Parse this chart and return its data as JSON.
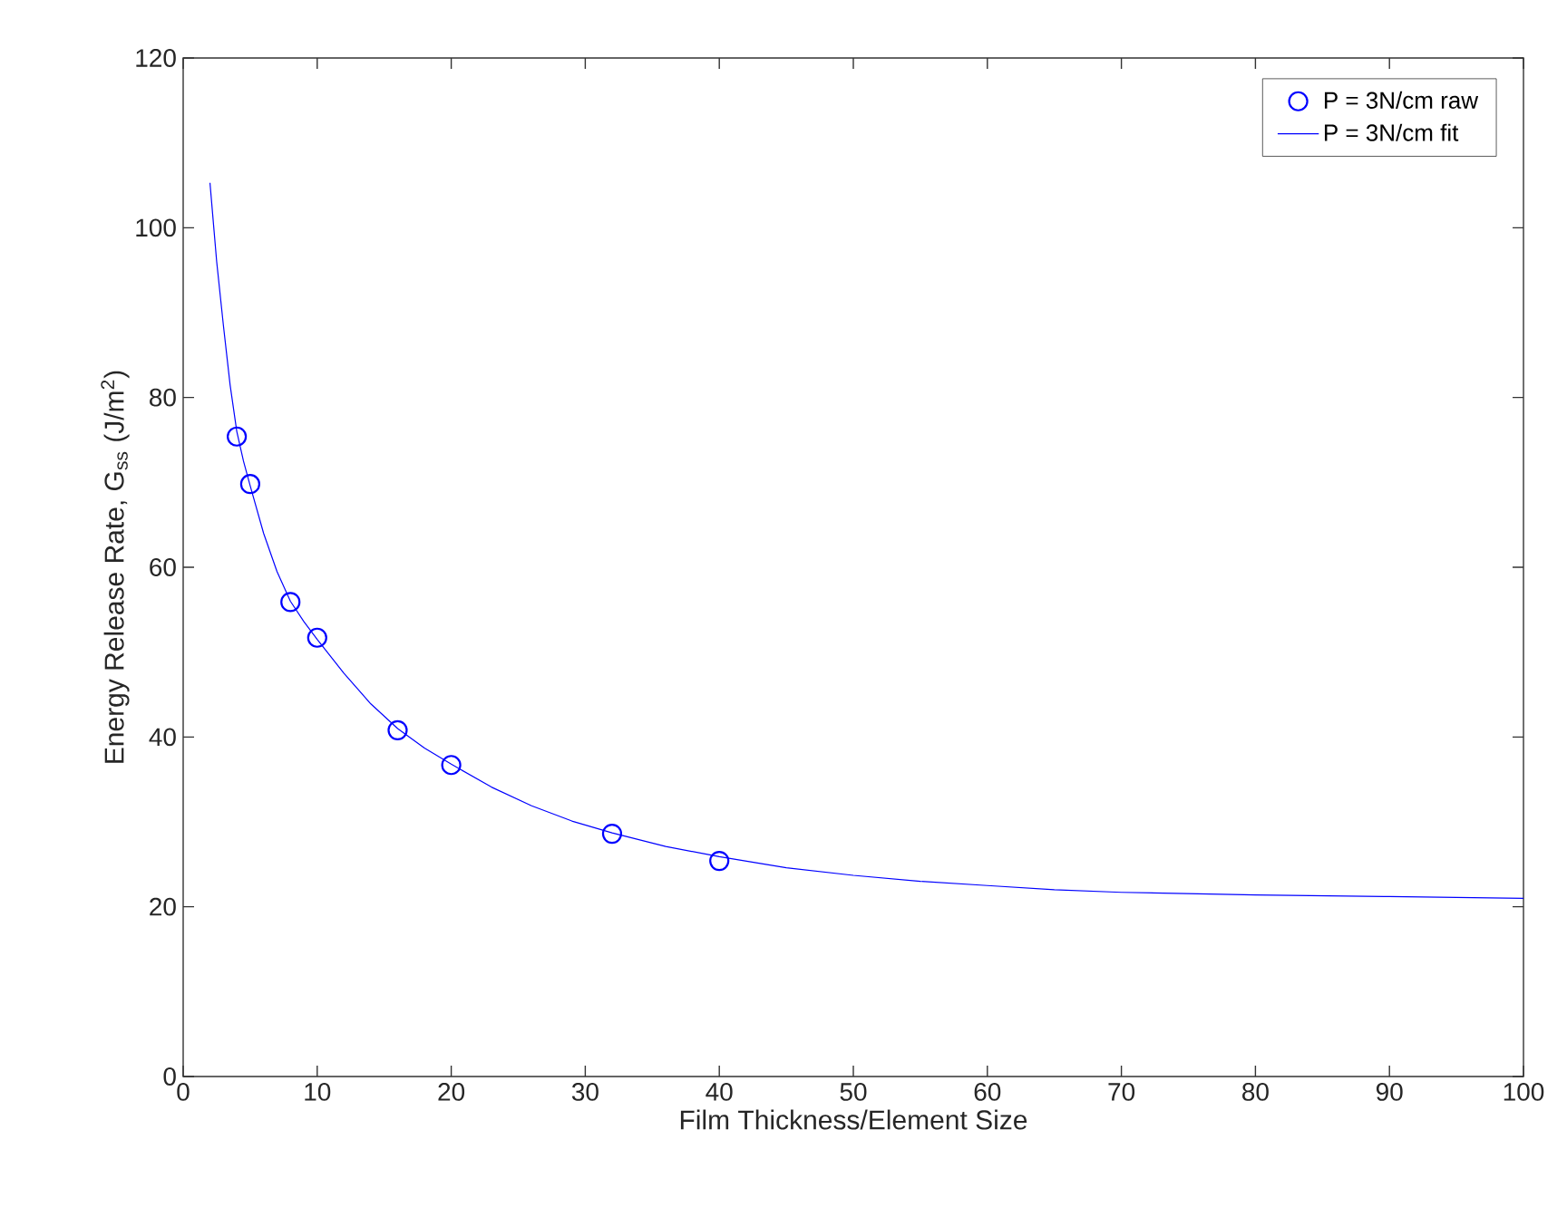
{
  "chart_data": {
    "type": "scatter",
    "xlabel": "Film Thickness/Element Size",
    "ylabel": "Energy Release Rate, G$_{ss}$ (J/m$^{2}$)",
    "xlim": [
      0,
      100
    ],
    "ylim": [
      0,
      120
    ],
    "xticks": [
      0,
      10,
      20,
      30,
      40,
      50,
      60,
      70,
      80,
      90,
      100
    ],
    "yticks": [
      0,
      20,
      40,
      60,
      80,
      100,
      120
    ],
    "grid": false,
    "legend": "top right",
    "series": [
      {
        "name": "P = 3N/cm raw",
        "marker": "circle",
        "color": "#0000ff",
        "x": [
          4,
          5,
          8,
          10,
          16,
          20,
          32,
          40
        ],
        "values": [
          75.4,
          69.8,
          55.9,
          51.7,
          40.8,
          36.7,
          28.6,
          25.4
        ]
      },
      {
        "name": "P = 3N/cm fit",
        "type": "line",
        "marker": "none",
        "line_style": "solid",
        "color": "#0000ff",
        "x": [
          2,
          2.5,
          3,
          3.5,
          4,
          4.5,
          5,
          6,
          7,
          8,
          9,
          10,
          12,
          14,
          16,
          18,
          20,
          23,
          26,
          29,
          32,
          36,
          40,
          45,
          50,
          55,
          60,
          65,
          70,
          80,
          90,
          100
        ],
        "values": [
          105.3,
          96,
          88.5,
          81.5,
          76,
          72.5,
          69.6,
          64,
          59.5,
          56,
          53.6,
          51.5,
          47.5,
          43.9,
          41,
          38.7,
          36.8,
          34.1,
          31.9,
          30.1,
          28.7,
          27.1,
          25.9,
          24.6,
          23.7,
          23,
          22.5,
          22,
          21.7,
          21.4,
          21.2,
          21.0
        ]
      }
    ]
  }
}
